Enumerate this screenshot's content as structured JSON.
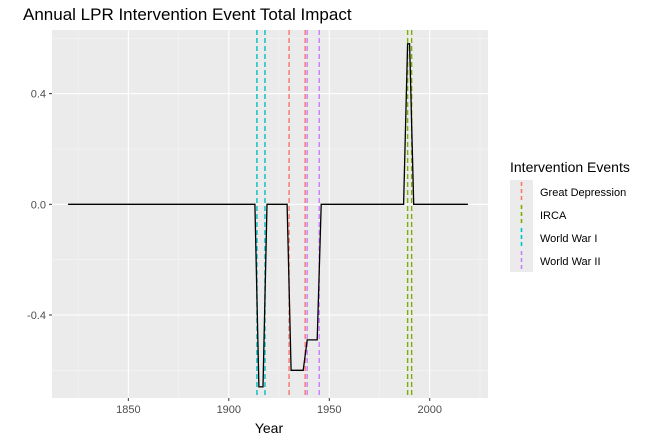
{
  "chart_data": {
    "type": "line",
    "title": "Annual LPR Intervention Event Total Impact",
    "xlabel": "Year",
    "ylabel": "",
    "xlim": [
      1812,
      2029
    ],
    "ylim": [
      -0.7,
      0.63
    ],
    "x_ticks": [
      1850,
      1900,
      1950,
      2000
    ],
    "x_minor_ticks": [
      1825,
      1875,
      1925,
      1975,
      2025
    ],
    "y_ticks": [
      0.4,
      0.0,
      -0.4
    ],
    "y_tick_labels": [
      "0.4",
      "0.0",
      "-0.4"
    ],
    "y_minor_ticks": [
      0.6,
      0.2,
      -0.2,
      -0.6
    ],
    "grid": true,
    "background": "#ebebeb",
    "series": [
      {
        "color": "#000000",
        "points": [
          [
            1820,
            0.0
          ],
          [
            1913,
            0.0
          ],
          [
            1915,
            -0.66
          ],
          [
            1917,
            -0.66
          ],
          [
            1919,
            0.0
          ],
          [
            1929,
            0.0
          ],
          [
            1931,
            -0.6
          ],
          [
            1937,
            -0.6
          ],
          [
            1939,
            -0.49
          ],
          [
            1944,
            -0.49
          ],
          [
            1946,
            0.0
          ],
          [
            1987,
            0.0
          ],
          [
            1989,
            0.58
          ],
          [
            1990,
            0.58
          ],
          [
            1992,
            0.0
          ],
          [
            2019,
            0.0
          ]
        ]
      }
    ],
    "event_lines": [
      {
        "event": "World War I",
        "x": 1914
      },
      {
        "event": "World War I",
        "x": 1918
      },
      {
        "event": "Great Depression",
        "x": 1930
      },
      {
        "event": "Great Depression",
        "x": 1938
      },
      {
        "event": "World War II",
        "x": 1939
      },
      {
        "event": "World War II",
        "x": 1945
      },
      {
        "event": "IRCA",
        "x": 1989
      },
      {
        "event": "IRCA",
        "x": 1991
      }
    ],
    "legend": {
      "title": "Intervention Events",
      "position": "right",
      "entries": [
        {
          "label": "Great Depression",
          "color": "#f8766d"
        },
        {
          "label": "IRCA",
          "color": "#7cae00"
        },
        {
          "label": "World War I",
          "color": "#00bfc4"
        },
        {
          "label": "World War II",
          "color": "#c77cff"
        }
      ]
    }
  }
}
